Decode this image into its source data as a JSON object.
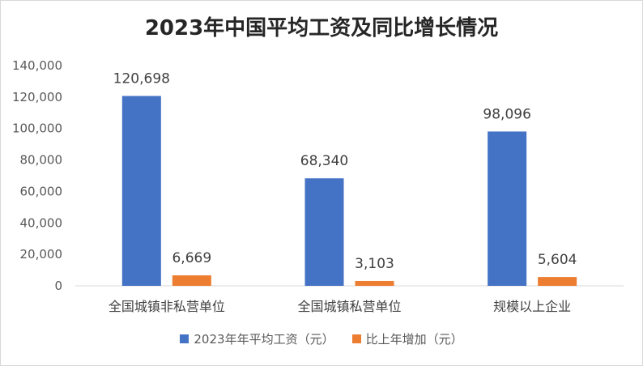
{
  "chart_data": {
    "type": "bar",
    "title": "2023年中国平均工资及同比增长情况",
    "categories": [
      "全国城镇非私营单位",
      "全国城镇私营单位",
      "规模以上企业"
    ],
    "series": [
      {
        "name": "2023年年平均工资（元）",
        "values": [
          120698,
          68340,
          98096
        ],
        "labels": [
          "120,698",
          "68,340",
          "98,096"
        ],
        "color": "#4472C4"
      },
      {
        "name": "比上年增加（元）",
        "values": [
          6669,
          3103,
          5604
        ],
        "labels": [
          "6,669",
          "3,103",
          "5,604"
        ],
        "color": "#ED7D31"
      }
    ],
    "ylim": [
      0,
      140000
    ],
    "yticks": [
      0,
      20000,
      40000,
      60000,
      80000,
      100000,
      120000,
      140000
    ],
    "ytick_labels": [
      "0",
      "20,000",
      "40,000",
      "60,000",
      "80,000",
      "100,000",
      "120,000",
      "140,000"
    ],
    "legend_position": "bottom",
    "grid": false
  }
}
